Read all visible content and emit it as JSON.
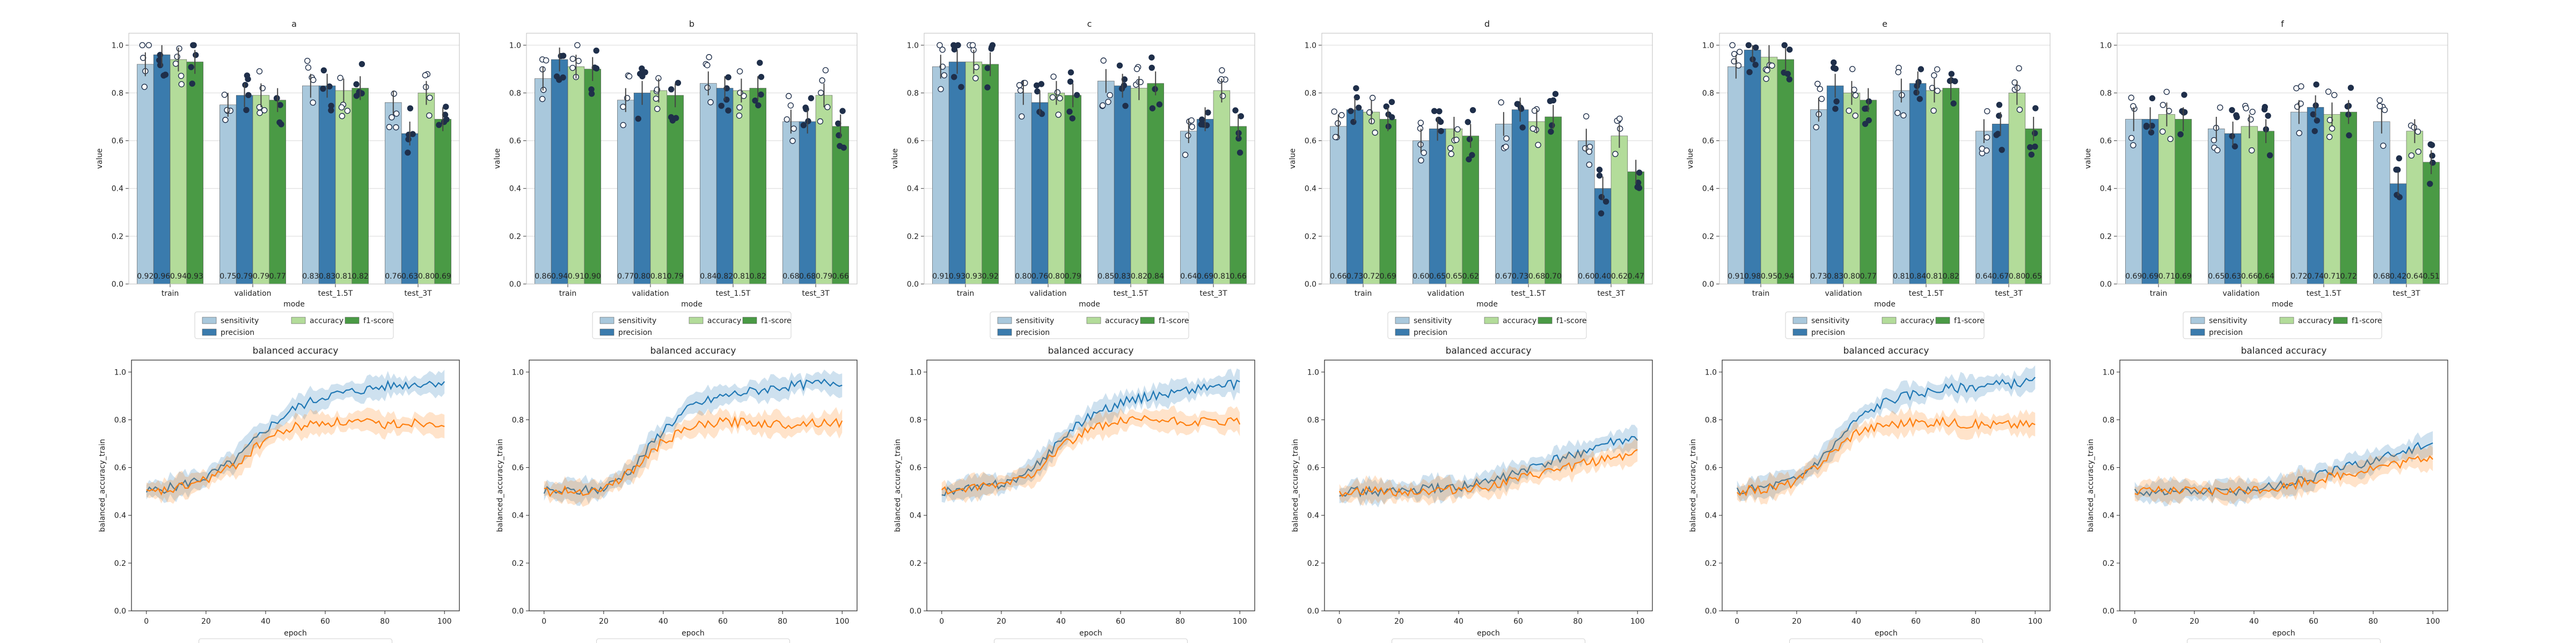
{
  "colors": {
    "sensitivity": "#a9c8dc",
    "precision": "#3a7bad",
    "accuracy": "#b3dc9a",
    "f1-score": "#4a9a45",
    "train_line": "#1f77b4",
    "val_line": "#ff7f0e",
    "grid": "#d9d9d9"
  },
  "chart_data": [
    {
      "panel": "a",
      "type": "bar",
      "title": "a",
      "xlabel": "mode",
      "ylabel": "value",
      "ylim": [
        0,
        1.05
      ],
      "yticks": [
        "0.0",
        "0.2",
        "0.4",
        "0.6",
        "0.8",
        "1.0"
      ],
      "grid": true,
      "legend_position": "bottom",
      "categories": [
        "train",
        "validation",
        "test_1.5T",
        "test_3T"
      ],
      "series": [
        {
          "name": "sensitivity",
          "values": [
            0.92,
            0.75,
            0.83,
            0.76
          ]
        },
        {
          "name": "precision",
          "values": [
            0.96,
            0.79,
            0.83,
            0.63
          ]
        },
        {
          "name": "accuracy",
          "values": [
            0.94,
            0.79,
            0.81,
            0.8
          ]
        },
        {
          "name": "f1-score",
          "values": [
            0.93,
            0.77,
            0.82,
            0.69
          ]
        }
      ],
      "value_labels": [
        [
          "0.92",
          "0.96",
          "0.94",
          "0.93"
        ],
        [
          "0.75",
          "0.79",
          "0.79",
          "0.77"
        ],
        [
          "0.83",
          "0.83",
          "0.81",
          "0.82"
        ],
        [
          "0.76",
          "0.63",
          "0.80",
          "0.69"
        ]
      ]
    },
    {
      "panel": "b",
      "type": "bar",
      "title": "b",
      "xlabel": "mode",
      "ylabel": "value",
      "ylim": [
        0,
        1.05
      ],
      "yticks": [
        "0.0",
        "0.2",
        "0.4",
        "0.6",
        "0.8",
        "1.0"
      ],
      "grid": true,
      "legend_position": "bottom",
      "categories": [
        "train",
        "validation",
        "test_1.5T",
        "test_3T"
      ],
      "series": [
        {
          "name": "sensitivity",
          "values": [
            0.86,
            0.77,
            0.84,
            0.68
          ]
        },
        {
          "name": "precision",
          "values": [
            0.94,
            0.8,
            0.82,
            0.68
          ]
        },
        {
          "name": "accuracy",
          "values": [
            0.91,
            0.81,
            0.81,
            0.79
          ]
        },
        {
          "name": "f1-score",
          "values": [
            0.9,
            0.79,
            0.82,
            0.66
          ]
        }
      ],
      "value_labels": [
        [
          "0.86",
          "0.94",
          "0.91",
          "0.90"
        ],
        [
          "0.77",
          "0.80",
          "0.81",
          "0.79"
        ],
        [
          "0.84",
          "0.82",
          "0.81",
          "0.82"
        ],
        [
          "0.68",
          "0.68",
          "0.79",
          "0.66"
        ]
      ]
    },
    {
      "panel": "c",
      "type": "bar",
      "title": "c",
      "xlabel": "mode",
      "ylabel": "value",
      "ylim": [
        0,
        1.05
      ],
      "yticks": [
        "0.0",
        "0.2",
        "0.4",
        "0.6",
        "0.8",
        "1.0"
      ],
      "grid": true,
      "legend_position": "bottom",
      "categories": [
        "train",
        "validation",
        "test_1.5T",
        "test_3T"
      ],
      "series": [
        {
          "name": "sensitivity",
          "values": [
            0.91,
            0.8,
            0.85,
            0.64
          ]
        },
        {
          "name": "precision",
          "values": [
            0.93,
            0.76,
            0.83,
            0.69
          ]
        },
        {
          "name": "accuracy",
          "values": [
            0.93,
            0.8,
            0.82,
            0.81
          ]
        },
        {
          "name": "f1-score",
          "values": [
            0.92,
            0.79,
            0.84,
            0.66
          ]
        }
      ],
      "value_labels": [
        [
          "0.91",
          "0.93",
          "0.93",
          "0.92"
        ],
        [
          "0.80",
          "0.76",
          "0.80",
          "0.79"
        ],
        [
          "0.85",
          "0.83",
          "0.82",
          "0.84"
        ],
        [
          "0.64",
          "0.69",
          "0.81",
          "0.66"
        ]
      ]
    },
    {
      "panel": "d",
      "type": "bar",
      "title": "d",
      "xlabel": "mode",
      "ylabel": "value",
      "ylim": [
        0,
        1.05
      ],
      "yticks": [
        "0.0",
        "0.2",
        "0.4",
        "0.6",
        "0.8",
        "1.0"
      ],
      "grid": true,
      "legend_position": "bottom",
      "categories": [
        "train",
        "validation",
        "test_1.5T",
        "test_3T"
      ],
      "series": [
        {
          "name": "sensitivity",
          "values": [
            0.66,
            0.6,
            0.67,
            0.6
          ]
        },
        {
          "name": "precision",
          "values": [
            0.73,
            0.65,
            0.73,
            0.4
          ]
        },
        {
          "name": "accuracy",
          "values": [
            0.72,
            0.65,
            0.68,
            0.62
          ]
        },
        {
          "name": "f1-score",
          "values": [
            0.69,
            0.62,
            0.7,
            0.47
          ]
        }
      ],
      "value_labels": [
        [
          "0.66",
          "0.73",
          "0.72",
          "0.69"
        ],
        [
          "0.60",
          "0.65",
          "0.65",
          "0.62"
        ],
        [
          "0.67",
          "0.73",
          "0.68",
          "0.70"
        ],
        [
          "0.60",
          "0.40",
          "0.62",
          "0.47"
        ]
      ]
    },
    {
      "panel": "e",
      "type": "bar",
      "title": "e",
      "xlabel": "mode",
      "ylabel": "value",
      "ylim": [
        0,
        1.05
      ],
      "yticks": [
        "0.0",
        "0.2",
        "0.4",
        "0.6",
        "0.8",
        "1.0"
      ],
      "grid": true,
      "legend_position": "bottom",
      "categories": [
        "train",
        "validation",
        "test_1.5T",
        "test_3T"
      ],
      "series": [
        {
          "name": "sensitivity",
          "values": [
            0.91,
            0.73,
            0.81,
            0.64
          ]
        },
        {
          "name": "precision",
          "values": [
            0.98,
            0.83,
            0.84,
            0.67
          ]
        },
        {
          "name": "accuracy",
          "values": [
            0.95,
            0.8,
            0.81,
            0.8
          ]
        },
        {
          "name": "f1-score",
          "values": [
            0.94,
            0.77,
            0.82,
            0.65
          ]
        }
      ],
      "value_labels": [
        [
          "0.91",
          "0.98",
          "0.95",
          "0.94"
        ],
        [
          "0.73",
          "0.83",
          "0.80",
          "0.77"
        ],
        [
          "0.81",
          "0.84",
          "0.81",
          "0.82"
        ],
        [
          "0.64",
          "0.67",
          "0.80",
          "0.65"
        ]
      ]
    },
    {
      "panel": "f",
      "type": "bar",
      "title": "f",
      "xlabel": "mode",
      "ylabel": "value",
      "ylim": [
        0,
        1.05
      ],
      "yticks": [
        "0.0",
        "0.2",
        "0.4",
        "0.6",
        "0.8",
        "1.0"
      ],
      "grid": true,
      "legend_position": "bottom",
      "categories": [
        "train",
        "validation",
        "test_1.5T",
        "test_3T"
      ],
      "series": [
        {
          "name": "sensitivity",
          "values": [
            0.69,
            0.65,
            0.72,
            0.68
          ]
        },
        {
          "name": "precision",
          "values": [
            0.69,
            0.63,
            0.74,
            0.42
          ]
        },
        {
          "name": "accuracy",
          "values": [
            0.71,
            0.66,
            0.71,
            0.64
          ]
        },
        {
          "name": "f1-score",
          "values": [
            0.69,
            0.64,
            0.72,
            0.51
          ]
        }
      ],
      "value_labels": [
        [
          "0.69",
          "0.69",
          "0.71",
          "0.69"
        ],
        [
          "0.65",
          "0.63",
          "0.66",
          "0.64"
        ],
        [
          "0.72",
          "0.74",
          "0.71",
          "0.72"
        ],
        [
          "0.68",
          "0.42",
          "0.64",
          "0.51"
        ]
      ]
    },
    {
      "panel": "a",
      "type": "line",
      "title": "balanced accuracy",
      "xlabel": "epoch",
      "ylabel": "balanced_accuracy_train",
      "xlim": [
        -5,
        105
      ],
      "ylim": [
        0,
        1.05
      ],
      "xticks": [
        "0",
        "20",
        "40",
        "60",
        "80",
        "100"
      ],
      "yticks": [
        "0.0",
        "0.2",
        "0.4",
        "0.6",
        "0.8",
        "1.0"
      ],
      "grid": false,
      "x": [
        0,
        10,
        20,
        30,
        40,
        50,
        60,
        70,
        80,
        90,
        100
      ],
      "series": [
        {
          "values": [
            0.5,
            0.52,
            0.56,
            0.63,
            0.76,
            0.85,
            0.9,
            0.92,
            0.94,
            0.95,
            0.96
          ]
        },
        {
          "values": [
            0.49,
            0.51,
            0.55,
            0.61,
            0.72,
            0.77,
            0.79,
            0.79,
            0.78,
            0.79,
            0.79
          ]
        }
      ]
    },
    {
      "panel": "b",
      "type": "line",
      "title": "balanced accuracy",
      "xlabel": "epoch",
      "ylabel": "balanced_accuracy_train",
      "xlim": [
        -5,
        105
      ],
      "ylim": [
        0,
        1.05
      ],
      "xticks": [
        "0",
        "20",
        "40",
        "60",
        "80",
        "100"
      ],
      "yticks": [
        "0.0",
        "0.2",
        "0.4",
        "0.6",
        "0.8",
        "1.0"
      ],
      "grid": false,
      "x": [
        0,
        10,
        20,
        30,
        40,
        50,
        60,
        70,
        80,
        90,
        100
      ],
      "series": [
        {
          "values": [
            0.5,
            0.5,
            0.51,
            0.6,
            0.76,
            0.86,
            0.9,
            0.92,
            0.94,
            0.95,
            0.96
          ]
        },
        {
          "values": [
            0.5,
            0.5,
            0.51,
            0.59,
            0.71,
            0.77,
            0.79,
            0.79,
            0.78,
            0.79,
            0.79
          ]
        }
      ]
    },
    {
      "panel": "c",
      "type": "line",
      "title": "balanced accuracy",
      "xlabel": "epoch",
      "ylabel": "balanced_accuracy_train",
      "xlim": [
        -5,
        105
      ],
      "ylim": [
        0,
        1.05
      ],
      "xticks": [
        "0",
        "20",
        "40",
        "60",
        "80",
        "100"
      ],
      "yticks": [
        "0.0",
        "0.2",
        "0.4",
        "0.6",
        "0.8",
        "1.0"
      ],
      "grid": false,
      "x": [
        0,
        10,
        20,
        30,
        40,
        50,
        60,
        70,
        80,
        90,
        100
      ],
      "series": [
        {
          "values": [
            0.5,
            0.51,
            0.53,
            0.58,
            0.72,
            0.82,
            0.87,
            0.9,
            0.92,
            0.94,
            0.95
          ]
        },
        {
          "values": [
            0.5,
            0.51,
            0.53,
            0.57,
            0.69,
            0.76,
            0.79,
            0.8,
            0.79,
            0.79,
            0.79
          ]
        }
      ]
    },
    {
      "panel": "d",
      "type": "line",
      "title": "balanced accuracy",
      "xlabel": "epoch",
      "ylabel": "balanced_accuracy_train",
      "xlim": [
        -5,
        105
      ],
      "ylim": [
        0,
        1.05
      ],
      "xticks": [
        "0",
        "20",
        "40",
        "60",
        "80",
        "100"
      ],
      "yticks": [
        "0.0",
        "0.2",
        "0.4",
        "0.6",
        "0.8",
        "1.0"
      ],
      "grid": false,
      "x": [
        0,
        10,
        20,
        30,
        40,
        50,
        60,
        70,
        80,
        90,
        100
      ],
      "series": [
        {
          "values": [
            0.5,
            0.5,
            0.5,
            0.51,
            0.52,
            0.54,
            0.58,
            0.62,
            0.66,
            0.7,
            0.72
          ]
        },
        {
          "values": [
            0.5,
            0.5,
            0.5,
            0.5,
            0.51,
            0.52,
            0.55,
            0.58,
            0.61,
            0.64,
            0.66
          ]
        }
      ]
    },
    {
      "panel": "e",
      "type": "line",
      "title": "balanced accuracy",
      "xlabel": "epoch",
      "ylabel": "balanced_accuracy_train",
      "xlim": [
        -5,
        105
      ],
      "ylim": [
        0,
        1.05
      ],
      "xticks": [
        "0",
        "20",
        "40",
        "60",
        "80",
        "100"
      ],
      "yticks": [
        "0.0",
        "0.2",
        "0.4",
        "0.6",
        "0.8",
        "1.0"
      ],
      "grid": false,
      "x": [
        0,
        10,
        20,
        30,
        40,
        50,
        60,
        70,
        80,
        90,
        100
      ],
      "series": [
        {
          "values": [
            0.5,
            0.52,
            0.55,
            0.66,
            0.8,
            0.88,
            0.91,
            0.93,
            0.94,
            0.95,
            0.96
          ]
        },
        {
          "values": [
            0.5,
            0.51,
            0.54,
            0.64,
            0.75,
            0.78,
            0.79,
            0.79,
            0.78,
            0.78,
            0.78
          ]
        }
      ]
    },
    {
      "panel": "f",
      "type": "line",
      "title": "balanced accuracy",
      "xlabel": "epoch",
      "ylabel": "balanced_accuracy_train",
      "xlim": [
        -5,
        105
      ],
      "ylim": [
        0,
        1.05
      ],
      "xticks": [
        "0",
        "20",
        "40",
        "60",
        "80",
        "100"
      ],
      "yticks": [
        "0.0",
        "0.2",
        "0.4",
        "0.6",
        "0.8",
        "1.0"
      ],
      "grid": false,
      "x": [
        0,
        10,
        20,
        30,
        40,
        50,
        60,
        70,
        80,
        90,
        100
      ],
      "series": [
        {
          "values": [
            0.5,
            0.5,
            0.5,
            0.5,
            0.51,
            0.53,
            0.56,
            0.6,
            0.63,
            0.67,
            0.7
          ]
        },
        {
          "values": [
            0.5,
            0.5,
            0.5,
            0.5,
            0.51,
            0.52,
            0.55,
            0.57,
            0.6,
            0.62,
            0.65
          ]
        }
      ]
    }
  ]
}
